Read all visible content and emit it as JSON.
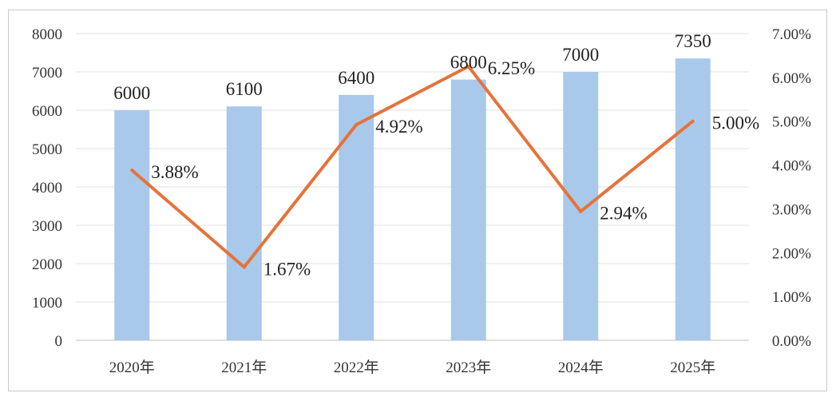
{
  "chart_data": {
    "type": "bar",
    "categories": [
      "2020年",
      "2021年",
      "2022年",
      "2023年",
      "2024年",
      "2025年"
    ],
    "series": [
      {
        "values": [
          6000,
          6100,
          6400,
          6800,
          7000,
          7350
        ],
        "color": "#a9c9ea",
        "chart_type": "bar",
        "axis": "left"
      },
      {
        "values": [
          3.88,
          1.67,
          4.92,
          6.25,
          2.94,
          5.0
        ],
        "color": "#e5733b",
        "chart_type": "line",
        "axis": "right"
      }
    ],
    "bar_labels": [
      "6000",
      "6100",
      "6400",
      "6800",
      "7000",
      "7350"
    ],
    "line_labels": [
      "3.88%",
      "1.67%",
      "4.92%",
      "6.25%",
      "2.94%",
      "5.00%"
    ],
    "y_left": {
      "min": 0,
      "max": 8000,
      "step": 1000,
      "ticks": [
        "0",
        "1000",
        "2000",
        "3000",
        "4000",
        "5000",
        "6000",
        "7000",
        "8000"
      ]
    },
    "y_right": {
      "min": 0,
      "max": 7,
      "step": 1,
      "ticks": [
        "0.00%",
        "1.00%",
        "2.00%",
        "3.00%",
        "4.00%",
        "5.00%",
        "6.00%",
        "7.00%"
      ]
    },
    "grid": true,
    "legend": "none",
    "title": "",
    "xlabel": "",
    "ylabel": ""
  }
}
